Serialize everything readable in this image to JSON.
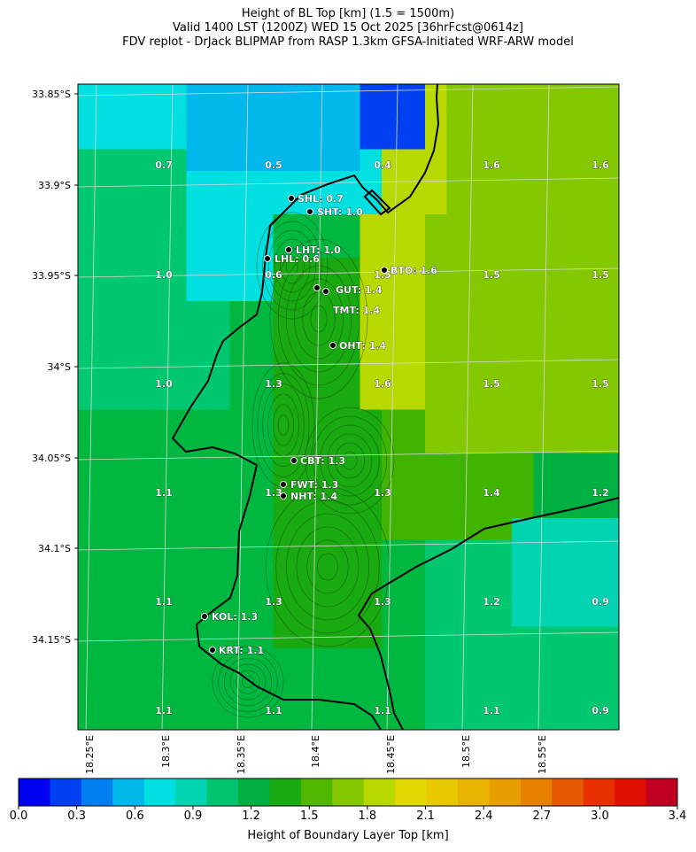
{
  "title": {
    "line1": "Height of BL Top [km] (1.5 = 1500m)",
    "line2": "Valid 1400 LST (1200Z) WED 15 Oct 2025 [36hrFcst@0614z]",
    "line3": "FDV replot - DrJack BLIPMAP from RASP 1.3km GFSA-Initiated WRF-ARW model"
  },
  "lat_ticks": [
    "33.85°S",
    "33.9°S",
    "33.95°S",
    "34°S",
    "34.05°S",
    "34.1°S",
    "34.15°S"
  ],
  "lon_ticks": [
    "18.25°E",
    "18.3°E",
    "18.35°E",
    "18.4°E",
    "18.45°E",
    "18.5°E",
    "18.55°E"
  ],
  "value_labels": [
    [
      "0.7",
      "0.5",
      "0.4",
      "1.6",
      "1.6"
    ],
    [
      "1.0",
      "0.6",
      "1.5",
      "1.5",
      "1.5"
    ],
    [
      "1.0",
      "1.3",
      "1.6",
      "1.5",
      "1.5"
    ],
    [
      "1.1",
      "1.3",
      "1.3",
      "1.4",
      "1.2"
    ],
    [
      "1.1",
      "1.3",
      "1.3",
      "1.2",
      "0.9"
    ],
    [
      "1.1",
      "1.1",
      "1.1",
      "1.1",
      "0.9"
    ]
  ],
  "stations": [
    {
      "code": "SHL",
      "value": "0.7"
    },
    {
      "code": "SHT",
      "value": "1.0"
    },
    {
      "code": "LHT",
      "value": "1.0"
    },
    {
      "code": "LHL",
      "value": "0.6"
    },
    {
      "code": "BTO",
      "value": "1.6"
    },
    {
      "code": "GUT",
      "value": "1.4"
    },
    {
      "code": "TMT",
      "value": "1.4"
    },
    {
      "code": "OHT",
      "value": "1.4"
    },
    {
      "code": "CBT",
      "value": "1.3"
    },
    {
      "code": "FWT",
      "value": "1.3"
    },
    {
      "code": "NHT",
      "value": "1.4"
    },
    {
      "code": "KOL",
      "value": "1.3"
    },
    {
      "code": "KRT",
      "value": "1.1"
    }
  ],
  "colorbar": {
    "label": "Height of Boundary Layer Top [km]",
    "ticks": [
      "0.0",
      "0.3",
      "0.6",
      "0.9",
      "1.2",
      "1.5",
      "1.8",
      "2.1",
      "2.4",
      "2.7",
      "3.0",
      "3.4"
    ],
    "colors": [
      "#0000f0",
      "#0040f0",
      "#0080f0",
      "#00b8ec",
      "#00e0e0",
      "#00d4b0",
      "#00c470",
      "#00b040",
      "#18aa10",
      "#50b800",
      "#84c800",
      "#b8d800",
      "#e0d800",
      "#e8c800",
      "#e8b400",
      "#e8a000",
      "#e88000",
      "#e85800",
      "#e83000",
      "#e01000",
      "#c00020"
    ]
  },
  "legend_colors": {
    "v0.4": "#0040f0",
    "v0.5": "#00b8ec",
    "v0.6": "#00e0e0",
    "v0.7": "#00e0e0",
    "v0.9": "#00d4b0",
    "v1.0": "#00c870",
    "v1.1": "#00b840",
    "v1.2": "#00b040",
    "v1.3": "#18aa10",
    "v1.4": "#40b400",
    "v1.5": "#84c800",
    "v1.6": "#b8d800",
    "coast": "#000000",
    "grid": "#d8d8d8"
  }
}
